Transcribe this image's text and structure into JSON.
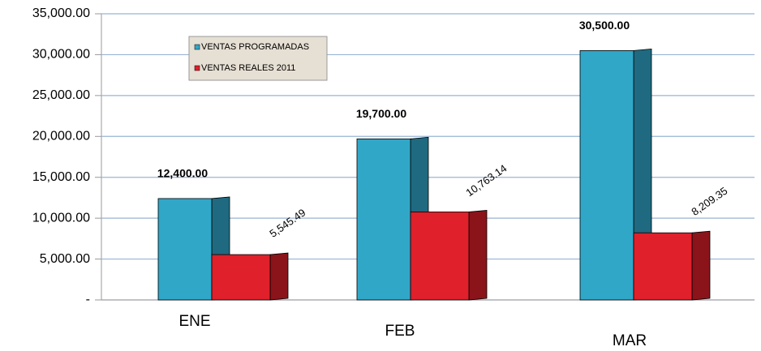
{
  "chart_data": {
    "type": "bar3d",
    "categories": [
      "ENE",
      "FEB",
      "MAR"
    ],
    "series": [
      {
        "name": "VENTAS PROGRAMADAS",
        "color": "#31a7c8",
        "side_color": "#1f6a80",
        "values": [
          12400,
          19700,
          30500
        ],
        "value_labels": [
          "12,400.00",
          "19,700.00",
          "30,500.00"
        ]
      },
      {
        "name": "VENTAS REALES 2011",
        "color": "#e0202a",
        "side_color": "#8a141a",
        "values": [
          5545.49,
          10763.14,
          8209.35
        ],
        "value_labels": [
          "5,545.49",
          "10,763.14",
          "8,209.35"
        ]
      }
    ],
    "ylim": [
      0,
      35000
    ],
    "yticks": [
      {
        "value": 0,
        "label": "-"
      },
      {
        "value": 5000,
        "label": "5,000.00"
      },
      {
        "value": 10000,
        "label": "10,000.00"
      },
      {
        "value": 15000,
        "label": "15,000.00"
      },
      {
        "value": 20000,
        "label": "20,000.00"
      },
      {
        "value": 25000,
        "label": "25,000.00"
      },
      {
        "value": 30000,
        "label": "30,000.00"
      },
      {
        "value": 35000,
        "label": "35,000.00"
      }
    ],
    "grid": true,
    "legend": "upper left"
  }
}
